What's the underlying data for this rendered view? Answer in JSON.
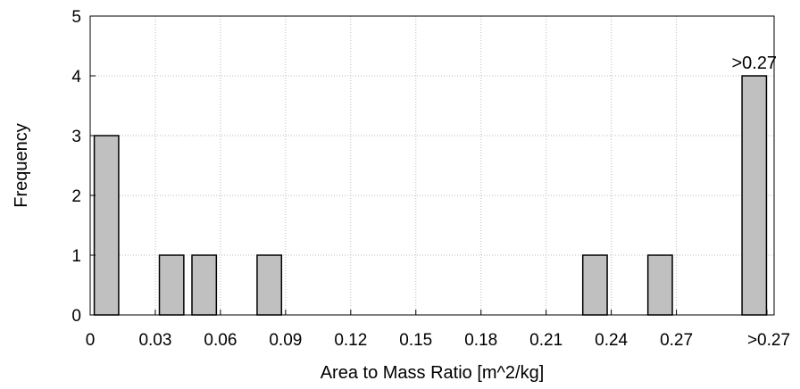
{
  "chart_data": {
    "type": "bar",
    "title": "",
    "xlabel": "Area to Mass Ratio [m^2/kg]",
    "ylabel": "Frequency",
    "ylim": [
      0,
      5
    ],
    "yticks": [
      "0",
      "1",
      "2",
      "3",
      "4",
      "5"
    ],
    "xticks": [
      "0",
      "0.03",
      "0.06",
      "0.09",
      "0.12",
      "0.15",
      "0.18",
      "0.21",
      "0.24",
      "0.27",
      ">0.27"
    ],
    "grid": true,
    "bins": [
      {
        "start": 0.0,
        "end": 0.015,
        "value": 3
      },
      {
        "start": 0.015,
        "end": 0.03,
        "value": 0
      },
      {
        "start": 0.03,
        "end": 0.045,
        "value": 1
      },
      {
        "start": 0.045,
        "end": 0.06,
        "value": 1
      },
      {
        "start": 0.06,
        "end": 0.075,
        "value": 0
      },
      {
        "start": 0.075,
        "end": 0.09,
        "value": 1
      },
      {
        "start": 0.09,
        "end": 0.105,
        "value": 0
      },
      {
        "start": 0.105,
        "end": 0.12,
        "value": 0
      },
      {
        "start": 0.12,
        "end": 0.135,
        "value": 0
      },
      {
        "start": 0.135,
        "end": 0.15,
        "value": 0
      },
      {
        "start": 0.15,
        "end": 0.165,
        "value": 0
      },
      {
        "start": 0.165,
        "end": 0.18,
        "value": 0
      },
      {
        "start": 0.18,
        "end": 0.195,
        "value": 0
      },
      {
        "start": 0.195,
        "end": 0.21,
        "value": 0
      },
      {
        "start": 0.21,
        "end": 0.225,
        "value": 0
      },
      {
        "start": 0.225,
        "end": 0.24,
        "value": 1
      },
      {
        "start": 0.24,
        "end": 0.255,
        "value": 0
      },
      {
        "start": 0.255,
        "end": 0.27,
        "value": 1
      },
      {
        "start": ">0.27",
        "end": ">0.27",
        "value": 4
      }
    ],
    "overflow_annotation": ">0.27",
    "bar_color": "#c0c0c0",
    "bar_edge_color": "#000000"
  }
}
